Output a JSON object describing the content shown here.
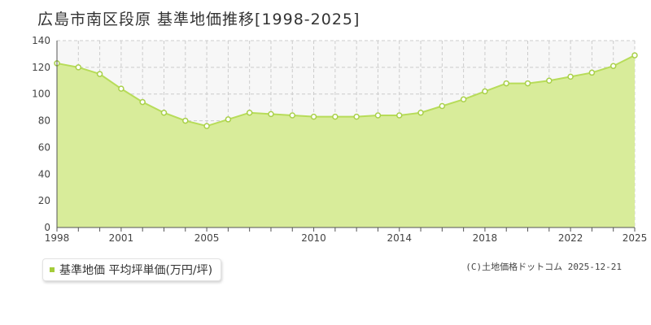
{
  "title": "広島市南区段原 基準地価推移[1998-2025]",
  "legend": {
    "label": "基準地価 平均坪単価(万円/坪)"
  },
  "credit": "(C)土地価格ドットコム 2025-12-21",
  "colors": {
    "fill": "#d8ec9a",
    "line": "#b7dc59",
    "marker_stroke": "#a9d04a",
    "marker_fill": "#ffffff",
    "grid": "#cccccc",
    "plot_bg": "#f7f7f7",
    "legend_swatch": "#a4cc3a"
  },
  "chart_data": {
    "type": "area",
    "x": [
      1998,
      1999,
      2000,
      2001,
      2002,
      2003,
      2004,
      2005,
      2006,
      2007,
      2008,
      2009,
      2010,
      2011,
      2012,
      2013,
      2014,
      2015,
      2016,
      2017,
      2018,
      2019,
      2020,
      2021,
      2022,
      2023,
      2024,
      2025
    ],
    "series": [
      {
        "name": "基準地価 平均坪単価(万円/坪)",
        "values": [
          123,
          120,
          115,
          104,
          94,
          86,
          80,
          76,
          81,
          86,
          85,
          84,
          83,
          83,
          83,
          84,
          84,
          86,
          91,
          96,
          102,
          108,
          108,
          110,
          113,
          116,
          121,
          129
        ]
      }
    ],
    "xticks": [
      "1998",
      "2001",
      "2005",
      "2010",
      "2014",
      "2018",
      "2022",
      "2025"
    ],
    "yticks": [
      "0",
      "20",
      "40",
      "60",
      "80",
      "100",
      "120",
      "140"
    ],
    "ylim": [
      0,
      140
    ],
    "grid": true,
    "legend_position": "bottom-left"
  }
}
